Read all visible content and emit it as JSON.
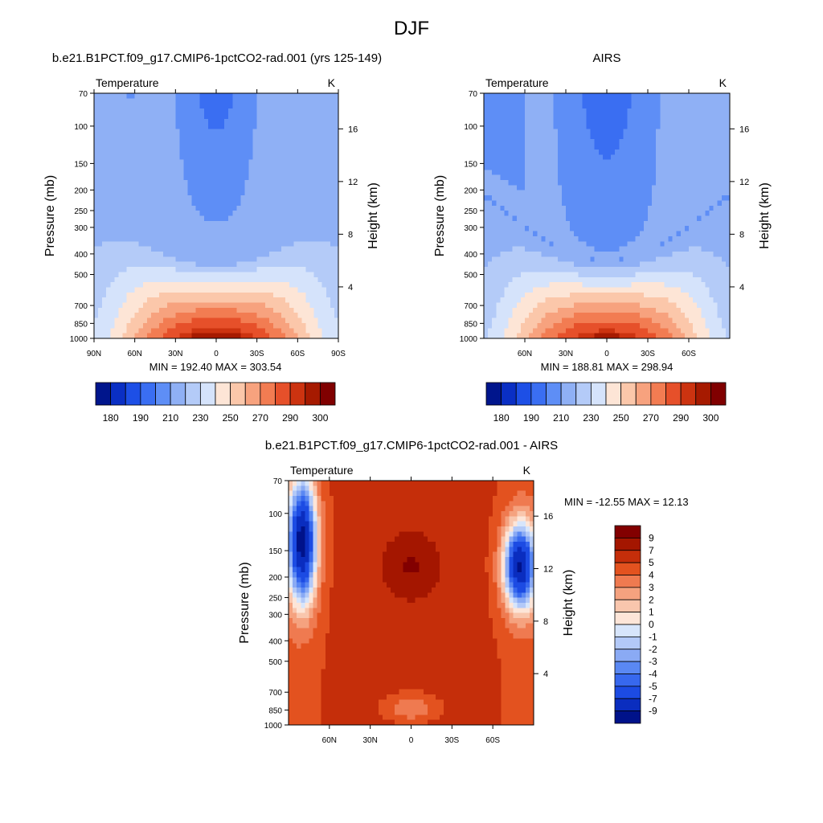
{
  "figure_title": "DJF",
  "colors": {
    "abs_scale": [
      "#00158c",
      "#0a2fc4",
      "#1d4fe6",
      "#3a6ef2",
      "#5e8ef6",
      "#8fb0f5",
      "#b4cbf8",
      "#d5e3fb",
      "#fde5d6",
      "#fbc7aa",
      "#f7a27e",
      "#f27c52",
      "#e6502a",
      "#cc3310",
      "#a61a00",
      "#800000"
    ],
    "diff_scale": [
      "#00128a",
      "#0a2dbf",
      "#1c4be3",
      "#3768ee",
      "#5a88f3",
      "#8aaaf4",
      "#b3c9f8",
      "#d7e5fb",
      "#fde5d8",
      "#f9c6ad",
      "#f5a27f",
      "#ef7a50",
      "#e3521f",
      "#c52e0a",
      "#a41600",
      "#820000"
    ]
  },
  "chart_data": [
    {
      "type": "heatmap",
      "id": "model",
      "title": "b.e21.B1PCT.f09_g17.CMIP6-1pctCO2-rad.001 (yrs 125-149)",
      "left_title": "Temperature",
      "units": "K",
      "ylabel": "Pressure (mb)",
      "y2label": "Height (km)",
      "xlim": [
        90,
        -90
      ],
      "x_ticks": [
        "90N",
        "60N",
        "30N",
        "0",
        "30S",
        "60S",
        "90S"
      ],
      "x_tick_values": [
        90,
        60,
        30,
        0,
        -30,
        -60,
        -90
      ],
      "y_ticks": [
        "70",
        "100",
        "150",
        "200",
        "250",
        "300",
        "400",
        "500",
        "700",
        "850",
        "1000"
      ],
      "y_tick_values": [
        70,
        100,
        150,
        200,
        250,
        300,
        400,
        500,
        700,
        850,
        1000
      ],
      "ylim": [
        70,
        1000
      ],
      "height_ticks": [
        "4",
        "8",
        "12",
        "16"
      ],
      "height_values": [
        4,
        8,
        12,
        16
      ],
      "stats": "MIN = 192.40  MAX = 303.54",
      "min": 192.4,
      "max": 303.54,
      "levels": [
        180,
        185,
        190,
        200,
        210,
        220,
        230,
        240,
        250,
        260,
        270,
        280,
        290,
        295,
        300
      ],
      "colorbar_labels": [
        "180",
        "190",
        "210",
        "230",
        "250",
        "270",
        "290",
        "300"
      ]
    },
    {
      "type": "heatmap",
      "id": "obs",
      "title": "AIRS",
      "left_title": "Temperature",
      "units": "K",
      "ylabel": "Pressure (mb)",
      "y2label": "Height (km)",
      "xlim": [
        90,
        -90
      ],
      "x_ticks": [
        "60N",
        "30N",
        "0",
        "30S",
        "60S"
      ],
      "x_tick_values": [
        60,
        30,
        0,
        -30,
        -60
      ],
      "y_ticks": [
        "70",
        "100",
        "150",
        "200",
        "250",
        "300",
        "400",
        "500",
        "700",
        "850",
        "1000"
      ],
      "y_tick_values": [
        70,
        100,
        150,
        200,
        250,
        300,
        400,
        500,
        700,
        850,
        1000
      ],
      "ylim": [
        70,
        1000
      ],
      "height_ticks": [
        "4",
        "8",
        "12",
        "16"
      ],
      "height_values": [
        4,
        8,
        12,
        16
      ],
      "stats": "MIN = 188.81  MAX = 298.94",
      "min": 188.81,
      "max": 298.94,
      "levels": [
        180,
        185,
        190,
        200,
        210,
        220,
        230,
        240,
        250,
        260,
        270,
        280,
        290,
        295,
        300
      ],
      "colorbar_labels": [
        "180",
        "190",
        "210",
        "230",
        "250",
        "270",
        "290",
        "300"
      ]
    },
    {
      "type": "heatmap",
      "id": "diff",
      "title": "b.e21.B1PCT.f09_g17.CMIP6-1pctCO2-rad.001 - AIRS",
      "left_title": "Temperature",
      "units": "K",
      "ylabel": "Pressure (mb)",
      "y2label": "Height (km)",
      "xlim": [
        90,
        -90
      ],
      "x_ticks": [
        "60N",
        "30N",
        "0",
        "30S",
        "60S"
      ],
      "x_tick_values": [
        60,
        30,
        0,
        -30,
        -60
      ],
      "y_ticks": [
        "70",
        "100",
        "150",
        "200",
        "250",
        "300",
        "400",
        "500",
        "700",
        "850",
        "1000"
      ],
      "y_tick_values": [
        70,
        100,
        150,
        200,
        250,
        300,
        400,
        500,
        700,
        850,
        1000
      ],
      "ylim": [
        70,
        1000
      ],
      "height_ticks": [
        "4",
        "8",
        "12",
        "16"
      ],
      "height_values": [
        4,
        8,
        12,
        16
      ],
      "stats": "MIN = -12.55  MAX =  12.13",
      "min": -12.55,
      "max": 12.13,
      "levels": [
        -9,
        -7,
        -5,
        -4,
        -3,
        -2,
        -1,
        0,
        1,
        2,
        3,
        4,
        5,
        7,
        9
      ],
      "colorbar_labels": [
        "9",
        "7",
        "5",
        "4",
        "3",
        "2",
        "1",
        "0",
        "-1",
        "-2",
        "-3",
        "-4",
        "-5",
        "-7",
        "-9"
      ]
    }
  ]
}
